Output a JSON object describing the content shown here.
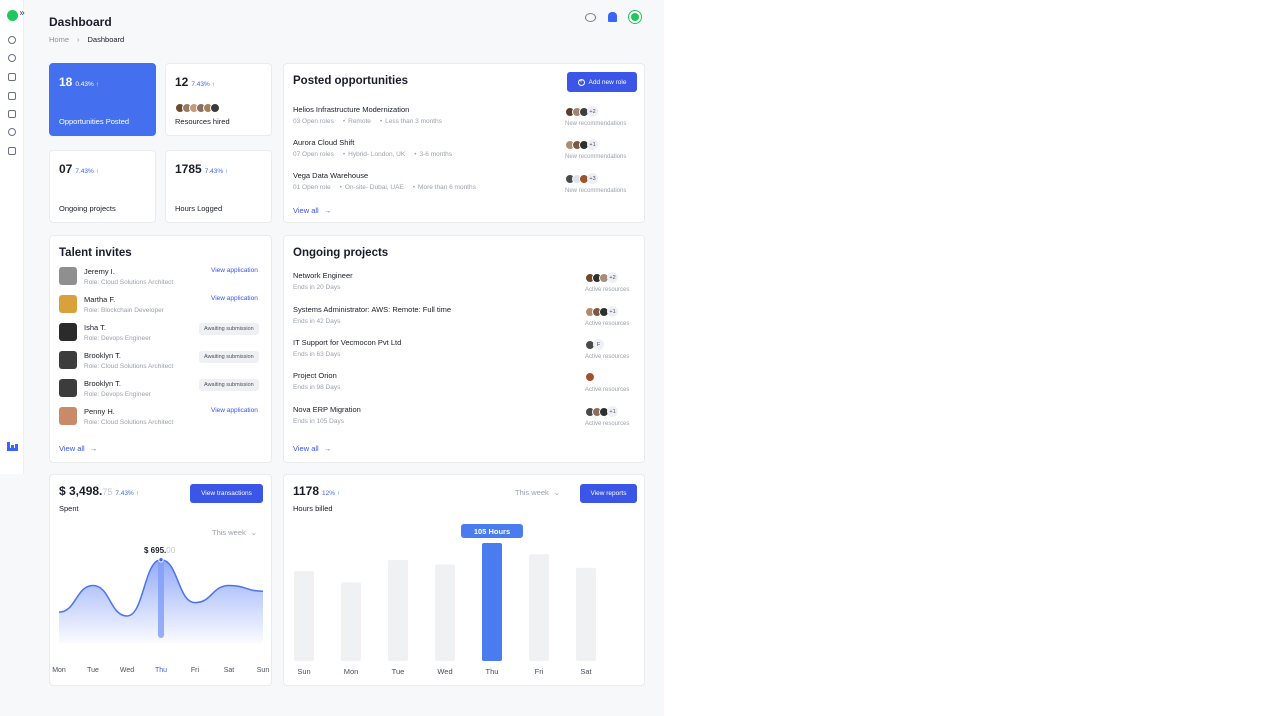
{
  "header": {
    "title": "Dashboard",
    "breadcrumb": [
      "Home",
      "Dashboard"
    ]
  },
  "stats": [
    {
      "value": "18",
      "delta": "0.43% ↑",
      "label": "Opportunities Posted"
    },
    {
      "value": "12",
      "delta": "7.43% ↑",
      "label": "Resources hired"
    },
    {
      "value": "07",
      "delta": "7.43% ↑",
      "label": "Ongoing projects"
    },
    {
      "value": "1785",
      "delta": "7.43% ↑",
      "label": "Hours Logged"
    }
  ],
  "posted": {
    "title": "Posted opportunities",
    "add_label": "Add new role",
    "view_all": "View all",
    "items": [
      {
        "title": "Helios Infrastructure Modernization",
        "meta": [
          "03 Open roles",
          "Remote",
          "Less than 3 months"
        ],
        "more": "+2",
        "sub": "New recommendations"
      },
      {
        "title": "Aurora Cloud Shift",
        "meta": [
          "07 Open roles",
          "Hybrid- London, UK",
          "3-6 months"
        ],
        "more": "+1",
        "sub": "New recommendations"
      },
      {
        "title": "Vega Data Warehouse",
        "meta": [
          "01 Open role",
          "On-site- Dubai, UAE",
          "More than 6 months"
        ],
        "more": "+3",
        "sub": "New recommendations"
      }
    ]
  },
  "talent": {
    "title": "Talent invites",
    "view_all": "View all",
    "items": [
      {
        "name": "Jeremy I.",
        "role": "Role: Cloud Solutions Architect",
        "action": "View application",
        "kind": "link"
      },
      {
        "name": "Martha F.",
        "role": "Role: Blockchain Developer",
        "action": "View application",
        "kind": "link"
      },
      {
        "name": "Isha T.",
        "role": "Role: Devops Engineer",
        "action": "Awaiting submission",
        "kind": "badge"
      },
      {
        "name": "Brooklyn T.",
        "role": "Role: Cloud Solutions Architect",
        "action": "Awaiting submission",
        "kind": "badge"
      },
      {
        "name": "Brooklyn T.",
        "role": "Role: Devops Engineer",
        "action": "Awaiting submission",
        "kind": "badge"
      },
      {
        "name": "Penny H.",
        "role": "Role: Cloud Solutions Architect",
        "action": "View application",
        "kind": "link"
      }
    ]
  },
  "ongoing": {
    "title": "Ongoing projects",
    "view_all": "View all",
    "items": [
      {
        "title": "Network Engineer",
        "ends": "Ends in 20 Days",
        "more": "+2",
        "sub": "Active resources"
      },
      {
        "title": "Systems Administrator: AWS: Remote: Full time",
        "ends": "Ends in 42 Days",
        "more": "+1",
        "sub": "Active resources"
      },
      {
        "title": "IT Support for Vecmocon Pvt Ltd",
        "ends": "Ends in 63 Days",
        "more": "F",
        "sub": "Active resources"
      },
      {
        "title": "Project Orion",
        "ends": "Ends in 98 Days",
        "more": "",
        "sub": "Active resources"
      },
      {
        "title": "Nova ERP Migration",
        "ends": "Ends in 105 Days",
        "more": "+1",
        "sub": "Active resources"
      }
    ]
  },
  "spent": {
    "amount": "$ 3,498.",
    "cents": "75",
    "delta": "7.43% ↑",
    "label": "Spent",
    "button": "View transactions",
    "range": "This week",
    "tooltip_amount": "$ 695.",
    "tooltip_cents": "00",
    "chart_data": {
      "type": "area",
      "categories": [
        "Mon",
        "Tue",
        "Wed",
        "Thu",
        "Fri",
        "Sat",
        "Sun"
      ],
      "values": [
        420,
        560,
        400,
        695,
        470,
        560,
        530
      ],
      "highlight": "Thu"
    }
  },
  "hours": {
    "value": "1178",
    "delta": "12% ↑",
    "label": "Hours billed",
    "range": "This week",
    "button": "View reports",
    "tooltip": "105 Hours",
    "chart_data": {
      "type": "bar",
      "categories": [
        "Sun",
        "Mon",
        "Tue",
        "Wed",
        "Thu",
        "Fri",
        "Sat"
      ],
      "values": [
        80,
        70,
        90,
        86,
        105,
        95,
        83
      ],
      "highlight": "Thu"
    }
  },
  "colors": {
    "accent": "#3b55e6",
    "highlight": "#4470f0",
    "brand_green": "#22c55e"
  }
}
